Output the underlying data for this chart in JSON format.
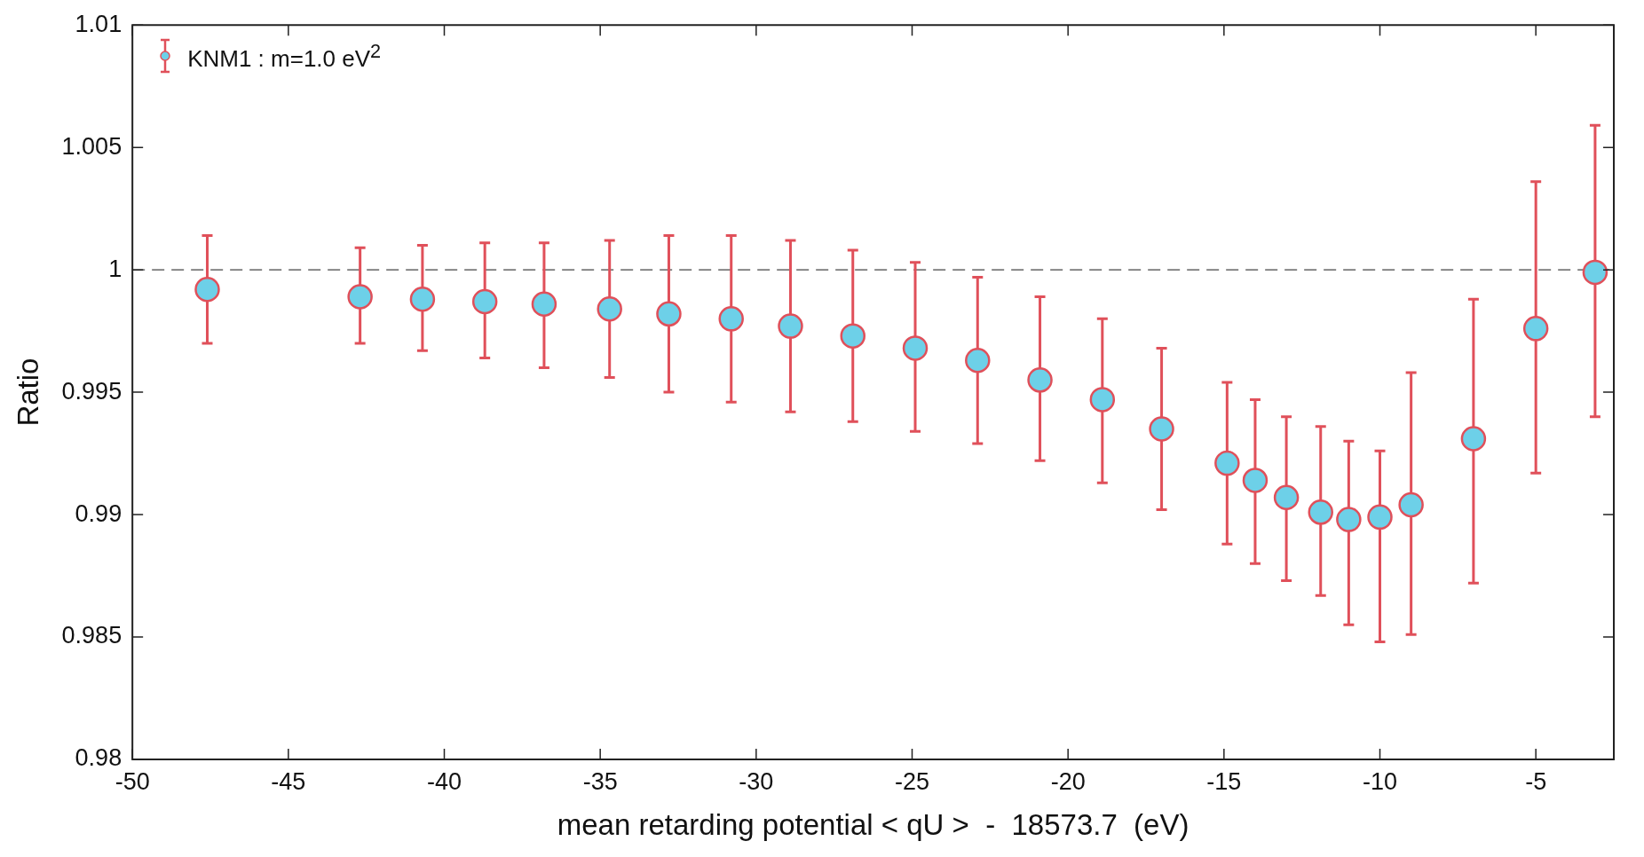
{
  "chart_data": {
    "type": "scatter",
    "xlabel": "mean retarding potential < qU >  -  18573.7  (eV)",
    "ylabel": "Ratio",
    "x": [
      -47.6,
      -42.7,
      -40.7,
      -38.7,
      -36.8,
      -34.7,
      -32.8,
      -30.8,
      -28.9,
      -26.9,
      -24.9,
      -22.9,
      -20.9,
      -18.9,
      -17.0,
      -14.9,
      -14.0,
      -13.0,
      -11.9,
      -11.0,
      -10.0,
      -9.0,
      -7.0,
      -5.0,
      -3.1
    ],
    "series": [
      {
        "name": "KNM1 : m=1.0 eV$^{2}$",
        "color": "#6dd0e8",
        "values": [
          0.9992,
          0.9989,
          0.9988,
          0.9987,
          0.9986,
          0.9984,
          0.9982,
          0.998,
          0.9977,
          0.9973,
          0.9968,
          0.9963,
          0.9955,
          0.9947,
          0.9935,
          0.9921,
          0.9914,
          0.9907,
          0.9901,
          0.9898,
          0.9899,
          0.9904,
          0.9931,
          0.9976,
          0.9999
        ],
        "errors": [
          [
            0.997,
            1.0014
          ],
          [
            0.997,
            1.0009
          ],
          [
            0.9967,
            1.001
          ],
          [
            0.9964,
            1.0011
          ],
          [
            0.996,
            1.0011
          ],
          [
            0.9956,
            1.0012
          ],
          [
            0.995,
            1.0014
          ],
          [
            0.9946,
            1.0014
          ],
          [
            0.9942,
            1.0012
          ],
          [
            0.9938,
            1.0008
          ],
          [
            0.9934,
            1.0003
          ],
          [
            0.9929,
            0.9997
          ],
          [
            0.9922,
            0.9989
          ],
          [
            0.9913,
            0.998
          ],
          [
            0.9902,
            0.9968
          ],
          [
            0.9888,
            0.9954
          ],
          [
            0.988,
            0.9947
          ],
          [
            0.9873,
            0.994
          ],
          [
            0.9867,
            0.9936
          ],
          [
            0.9855,
            0.993
          ],
          [
            0.9848,
            0.9926
          ],
          [
            0.9851,
            0.9958
          ],
          [
            0.9872,
            0.9988
          ],
          [
            0.9917,
            1.0036
          ],
          [
            0.994,
            1.0059
          ]
        ]
      }
    ],
    "xlim": [
      -50,
      -2.5
    ],
    "xticks": [
      -50,
      -45,
      -40,
      -35,
      -30,
      -25,
      -20,
      -15,
      -10,
      -5
    ],
    "ylim": [
      0.98,
      1.01
    ],
    "yticks": [
      0.98,
      0.985,
      0.99,
      0.995,
      1,
      1.005,
      1.01
    ],
    "ref_lines": [
      {
        "axis": "y",
        "value": 1,
        "color": "#444444",
        "line_style": "dashed"
      }
    ],
    "marker": "circle",
    "legend": "top left",
    "grid": false
  }
}
